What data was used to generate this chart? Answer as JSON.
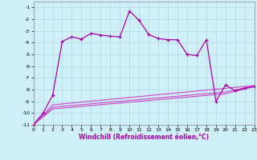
{
  "xlabel": "Windchill (Refroidissement éolien,°C)",
  "bg_color": "#cff0f8",
  "grid_color": "#b0d8e8",
  "line_color": "#aa00aa",
  "line_color2": "#cc44cc",
  "xlim": [
    0,
    23
  ],
  "ylim": [
    -11,
    -0.5
  ],
  "xticks": [
    0,
    1,
    2,
    3,
    4,
    5,
    6,
    7,
    8,
    9,
    10,
    11,
    12,
    13,
    14,
    15,
    16,
    17,
    18,
    19,
    20,
    21,
    22,
    23
  ],
  "yticks": [
    -11,
    -10,
    -9,
    -8,
    -7,
    -6,
    -5,
    -4,
    -3,
    -2,
    -1
  ],
  "main_x": [
    0,
    1,
    2,
    3,
    4,
    5,
    6,
    7,
    8,
    9,
    10,
    11,
    12,
    13,
    14,
    15,
    16,
    17,
    18,
    19,
    20,
    21,
    22,
    23
  ],
  "main_y": [
    -11.0,
    -10.0,
    -8.5,
    -3.9,
    -3.5,
    -3.7,
    -3.2,
    -3.35,
    -3.45,
    -3.5,
    -1.3,
    -2.1,
    -3.3,
    -3.65,
    -3.75,
    -3.75,
    -5.0,
    -5.1,
    -3.75,
    -9.0,
    -7.6,
    -8.1,
    -7.85,
    -7.75
  ],
  "line2_x": [
    0,
    2,
    23
  ],
  "line2_y": [
    -11.0,
    -9.3,
    -7.65
  ],
  "line3_x": [
    0,
    2,
    20,
    23
  ],
  "line3_y": [
    -11.0,
    -9.5,
    -8.2,
    -7.7
  ],
  "line4_x": [
    0,
    2,
    20,
    23
  ],
  "line4_y": [
    -11.0,
    -9.65,
    -8.35,
    -7.75
  ]
}
